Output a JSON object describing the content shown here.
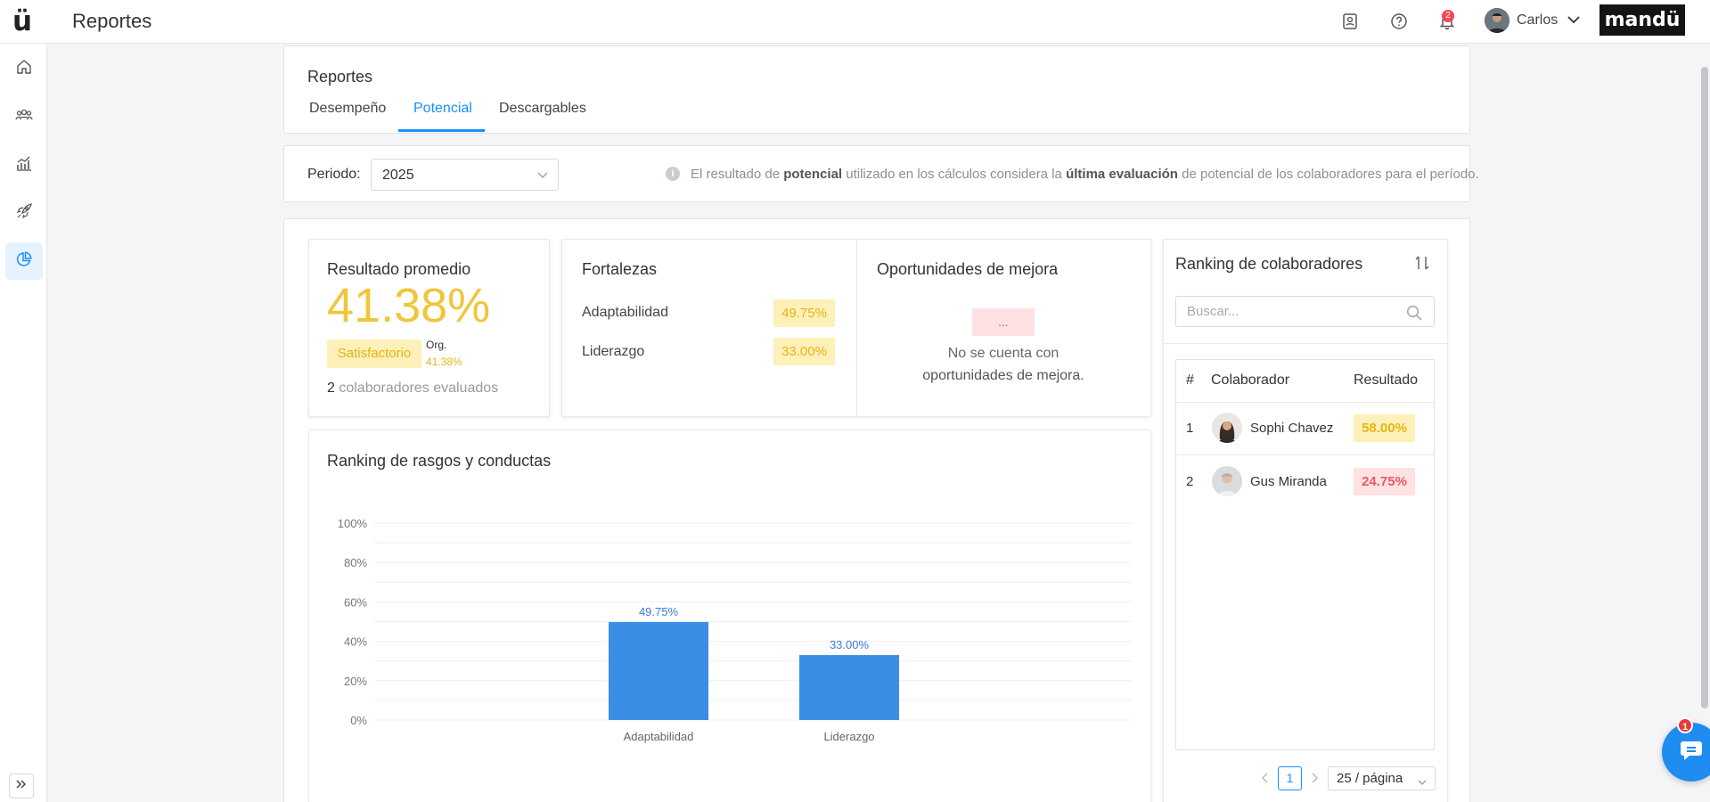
{
  "header": {
    "logo_glyph": "ü",
    "title": "Reportes",
    "icons": [
      "contact-card-icon",
      "help-icon",
      "bell-icon"
    ],
    "notification_count": "2",
    "user_name": "Carlos",
    "brand": "mandü"
  },
  "sidebar": {
    "items": [
      "home-icon",
      "users-icon",
      "chart-growth-icon",
      "rocket-icon",
      "pie-chart-icon"
    ],
    "active_index": 4
  },
  "reports": {
    "heading": "Reportes",
    "tabs": [
      {
        "label": "Desempeño"
      },
      {
        "label": "Potencial",
        "active": true
      },
      {
        "label": "Descargables"
      }
    ]
  },
  "filter": {
    "period_label": "Periodo:",
    "period_value": "2025",
    "info_parts": [
      "El resultado de ",
      "potencial",
      " utilizado en los cálculos considera la ",
      "última evaluación",
      " de potencial de los colaboradores para el período."
    ]
  },
  "average": {
    "title": "Resultado promedio",
    "value": "41.38%",
    "level": "Satisfactorio",
    "org_label": "Org.",
    "org_value": "41.38%",
    "evaluated_count": "2",
    "evaluated_text": " colaboradores evaluados"
  },
  "strengths": {
    "title": "Fortalezas",
    "items": [
      {
        "label": "Adaptabilidad",
        "value": "49.75%"
      },
      {
        "label": "Liderazgo",
        "value": "33.00%"
      }
    ]
  },
  "opportunities": {
    "title": "Oportunidades de mejora",
    "badge": "...",
    "empty_line1": "No se cuenta con",
    "empty_line2": "oportunidades de mejora."
  },
  "traits": {
    "title": "Ranking de rasgos y conductas"
  },
  "chart_data": {
    "type": "bar",
    "categories": [
      "Adaptabilidad",
      "Liderazgo"
    ],
    "values": [
      49.75,
      33.0
    ],
    "value_labels": [
      "49.75%",
      "33.00%"
    ],
    "y_ticks": [
      "0%",
      "20%",
      "40%",
      "60%",
      "80%",
      "100%"
    ],
    "ylim": [
      0,
      100
    ],
    "grid": true,
    "bar_color": "#3a8ee6",
    "label_color": "#3a7bd5"
  },
  "ranking": {
    "title": "Ranking de colaboradores",
    "search_placeholder": "Buscar...",
    "columns": [
      "#",
      "Colaborador",
      "Resultado"
    ],
    "rows": [
      {
        "rank": "1",
        "name": "Sophi Chavez",
        "result": "58.00%",
        "level": "yellow"
      },
      {
        "rank": "2",
        "name": "Gus Miranda",
        "result": "24.75%",
        "level": "red"
      }
    ],
    "current_page": "1",
    "page_size": "25 / página"
  },
  "chat": {
    "unread": "1"
  },
  "colors": {
    "accent": "#1890ff",
    "yellow": "#f0c63a",
    "red": "#e85a64"
  }
}
